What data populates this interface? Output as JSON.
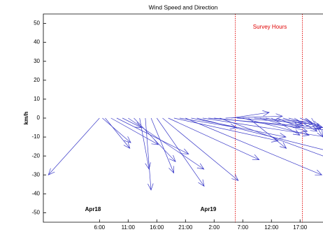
{
  "chart_data": {
    "type": "quiver",
    "title": "Wind Speed and Direction",
    "ylabel": "km/h",
    "color": "#3a3ac8",
    "x": [
      6,
      6.5,
      7,
      8,
      9,
      10,
      11,
      12,
      13,
      14,
      15,
      16,
      17,
      18,
      19,
      20,
      21,
      22,
      23,
      24,
      25,
      26,
      27,
      28,
      29,
      30,
      31,
      32,
      33,
      34,
      35,
      36,
      37,
      38,
      39,
      40,
      41,
      42,
      43
    ],
    "u": [
      -27,
      15,
      13,
      25,
      38,
      10,
      40,
      22,
      5,
      3,
      12,
      25,
      40,
      48,
      55,
      30,
      72,
      50,
      80,
      85,
      60,
      75,
      60,
      30,
      20,
      40,
      35,
      20,
      30,
      25,
      20,
      15,
      12,
      10,
      18,
      12,
      10,
      8,
      6
    ],
    "v": [
      -30,
      -13,
      -16,
      -14,
      -19,
      -5,
      -27,
      -23,
      -27,
      -38,
      -29,
      -36,
      -33,
      -22,
      -12,
      -5,
      -30,
      -10,
      -20,
      -13,
      -5,
      -8,
      -22,
      1,
      3,
      -3,
      -9,
      -16,
      -2,
      -7,
      -4,
      -9,
      -5,
      -3,
      -5,
      -7,
      -4,
      -6,
      -10
    ],
    "xlim": [
      -3.8,
      45
    ],
    "ylim": [
      -55,
      55
    ],
    "xticks": [
      {
        "value": 6,
        "label": "6:00"
      },
      {
        "value": 11,
        "label": "11:00"
      },
      {
        "value": 16,
        "label": "16:00"
      },
      {
        "value": 21,
        "label": "21:00"
      },
      {
        "value": 26,
        "label": "2:00"
      },
      {
        "value": 31,
        "label": "7:00"
      },
      {
        "value": 36,
        "label": "12:00"
      },
      {
        "value": 41,
        "label": "17:00"
      }
    ],
    "yticks": [
      50,
      40,
      30,
      20,
      10,
      0,
      -10,
      -20,
      -30,
      -40,
      -50
    ],
    "survey_hours": [
      29.7,
      41.4
    ],
    "survey_color": "#e00000",
    "annotations": [
      "Apr18",
      "Apr19",
      "Survey Hours"
    ]
  }
}
